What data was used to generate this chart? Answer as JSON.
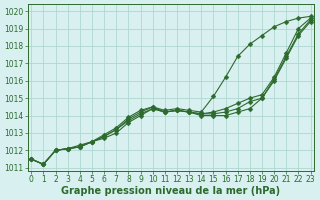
{
  "xlabel": "Graphe pression niveau de la mer (hPa)",
  "x": [
    0,
    1,
    2,
    3,
    4,
    5,
    6,
    7,
    8,
    9,
    10,
    11,
    12,
    13,
    14,
    15,
    16,
    17,
    18,
    19,
    20,
    21,
    22,
    23
  ],
  "series": [
    [
      1011.5,
      1011.2,
      1012.0,
      1012.1,
      1012.3,
      1012.5,
      1012.7,
      1013.1,
      1013.6,
      1014.0,
      1014.4,
      1014.2,
      1014.3,
      1014.3,
      1014.1,
      1014.1,
      1014.1,
      1014.3,
      1014.5,
      1015.0,
      1016.0,
      1017.4,
      1018.8,
      1019.5
    ],
    [
      1011.5,
      1011.2,
      1012.0,
      1012.1,
      1012.3,
      1012.5,
      1012.9,
      1013.3,
      1013.9,
      1014.3,
      1014.5,
      1014.3,
      1014.4,
      1014.3,
      1014.1,
      1014.1,
      1014.3,
      1014.5,
      1015.0,
      1015.1,
      1016.1,
      1017.6,
      1019.0,
      1019.6
    ],
    [
      1011.5,
      1011.2,
      1012.0,
      1012.1,
      1012.3,
      1012.5,
      1012.9,
      1013.3,
      1013.9,
      1014.3,
      1014.5,
      1014.3,
      1014.4,
      1014.3,
      1014.2,
      1014.2,
      1014.4,
      1014.7,
      1015.1,
      1015.2,
      1016.3,
      1017.8,
      1019.2,
      1019.7
    ],
    [
      1011.5,
      1011.2,
      1012.0,
      1012.1,
      1012.3,
      1012.5,
      1012.9,
      1013.3,
      1013.8,
      1014.0,
      1014.5,
      1014.3,
      1014.4,
      1014.3,
      1014.1,
      1015.0,
      1016.1,
      1017.3,
      1018.0,
      1018.5,
      1019.1,
      1019.4,
      1019.6,
      1019.7
    ]
  ],
  "line_color": "#2d6a2d",
  "marker": "D",
  "marker_size": 2.5,
  "bg_color": "#d8f0f0",
  "grid_color": "#b0d8d0",
  "ylim": [
    1010.8,
    1020.4
  ],
  "yticks": [
    1011,
    1012,
    1013,
    1014,
    1015,
    1016,
    1017,
    1018,
    1019,
    1020
  ],
  "xticks": [
    0,
    1,
    2,
    3,
    4,
    5,
    6,
    7,
    8,
    9,
    10,
    11,
    12,
    13,
    14,
    15,
    16,
    17,
    18,
    19,
    20,
    21,
    22,
    23
  ],
  "label_color": "#2d6a2d",
  "label_fontsize": 7.0,
  "tick_fontsize": 5.5
}
